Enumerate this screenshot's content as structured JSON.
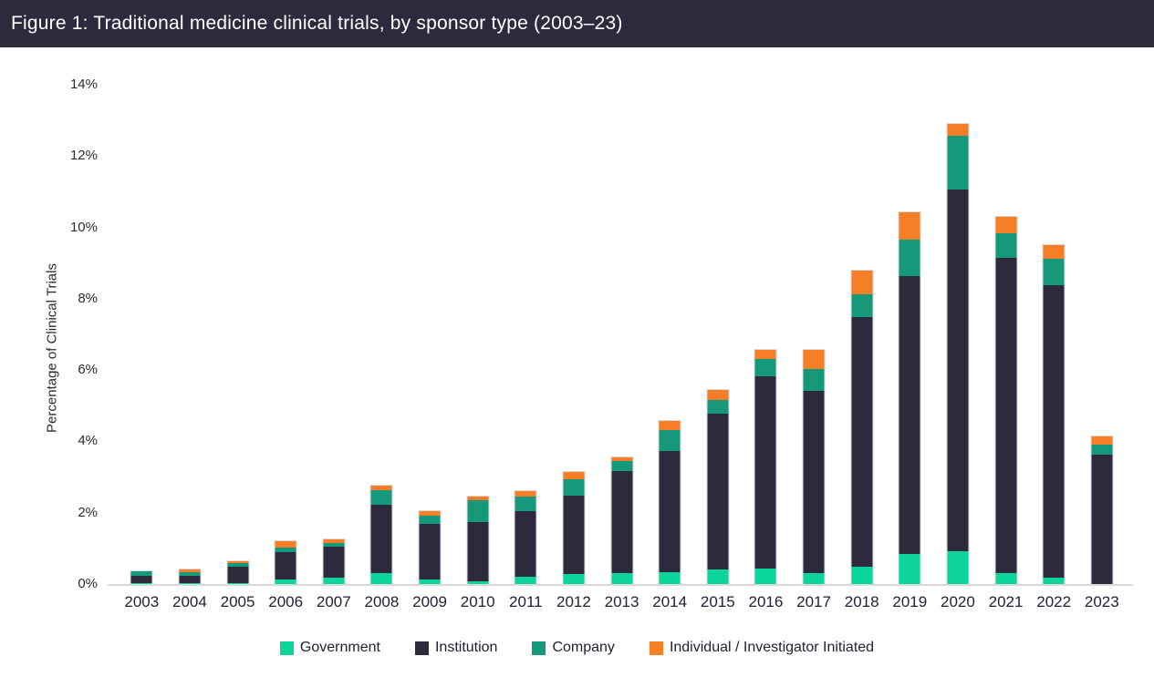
{
  "header": {
    "title": "Figure 1: Traditional medicine clinical trials, by sponsor type (2003–23)"
  },
  "colors": {
    "title_bar_background": "#2E2A3E",
    "title_text": "#FFFFFF",
    "axis_line": "#D9D9D9",
    "tick_text": "#2B2B2B",
    "government": "#0CD59B",
    "institution": "#2D2A3E",
    "company": "#16997B",
    "individual": "#F57E27"
  },
  "chart_data": {
    "type": "bar",
    "stacked": true,
    "title": "Figure 1: Traditional medicine clinical trials, by sponsor type (2003–23)",
    "xlabel": "",
    "ylabel": "Percentage of Clinical Trials",
    "ylim": [
      0,
      14
    ],
    "ytick_step": 2,
    "ytick_suffix": "%",
    "grid": false,
    "legend_position": "bottom",
    "categories": [
      "2003",
      "2004",
      "2005",
      "2006",
      "2007",
      "2008",
      "2009",
      "2010",
      "2011",
      "2012",
      "2013",
      "2014",
      "2015",
      "2016",
      "2017",
      "2018",
      "2019",
      "2020",
      "2021",
      "2022",
      "2023"
    ],
    "series": [
      {
        "name": "Government",
        "color": "#0CD59B",
        "values": [
          0.02,
          0.02,
          0.03,
          0.12,
          0.17,
          0.32,
          0.12,
          0.09,
          0.2,
          0.27,
          0.3,
          0.33,
          0.41,
          0.44,
          0.3,
          0.49,
          0.84,
          0.91,
          0.3,
          0.19,
          0.0
        ]
      },
      {
        "name": "Institution",
        "color": "#2D2A3E",
        "values": [
          0.2,
          0.2,
          0.45,
          0.78,
          0.87,
          1.9,
          1.57,
          1.66,
          1.85,
          2.2,
          2.87,
          3.4,
          4.37,
          5.38,
          5.12,
          7.0,
          7.79,
          10.15,
          8.85,
          8.19,
          3.64
        ]
      },
      {
        "name": "Company",
        "color": "#16997B",
        "values": [
          0.13,
          0.12,
          0.1,
          0.13,
          0.1,
          0.42,
          0.22,
          0.61,
          0.4,
          0.48,
          0.28,
          0.6,
          0.38,
          0.48,
          0.61,
          0.63,
          1.03,
          1.5,
          0.68,
          0.75,
          0.28
        ]
      },
      {
        "name": "Individual / Investigator Initiated",
        "color": "#F57E27",
        "values": [
          0.0,
          0.06,
          0.07,
          0.17,
          0.11,
          0.11,
          0.14,
          0.09,
          0.15,
          0.2,
          0.1,
          0.25,
          0.27,
          0.27,
          0.54,
          0.67,
          0.76,
          0.34,
          0.48,
          0.37,
          0.22
        ]
      }
    ]
  }
}
